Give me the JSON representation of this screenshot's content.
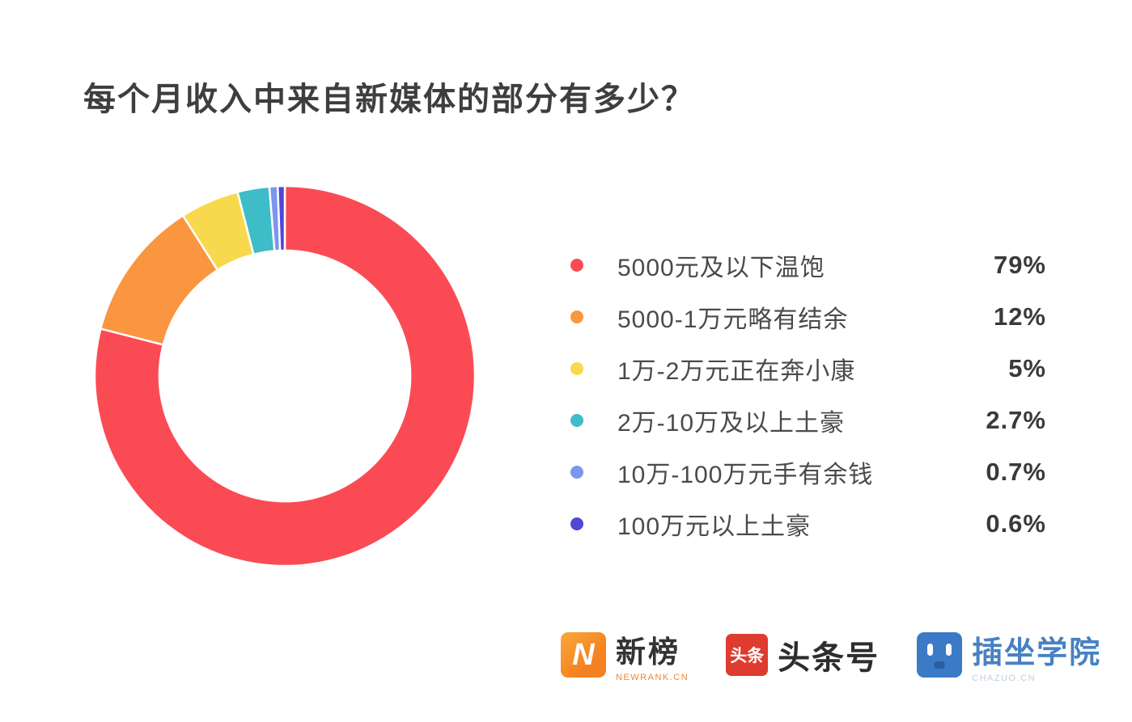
{
  "title": {
    "text": "每个月收入中来自新媒体的部分有多少？"
  },
  "chart_data": {
    "type": "pie",
    "subtype": "donut",
    "title": "每个月收入中来自新媒体的部分有多少？",
    "labels": [
      "5000元及以下温饱",
      "5000-1万元略有结余",
      "1万-2万元正在奔小康",
      "2万-10万及以上土豪",
      "10万-100万元手有余钱",
      "100万元以上土豪"
    ],
    "values": [
      79,
      12,
      5,
      2.7,
      0.7,
      0.6
    ],
    "value_labels": [
      "79%",
      "12%",
      "5%",
      "2.7%",
      "0.7%",
      "0.6%"
    ],
    "colors": [
      "#fa4b55",
      "#f9963f",
      "#f8d94e",
      "#3ebcc7",
      "#7b96ee",
      "#5246d7"
    ],
    "start_angle_deg": 0,
    "direction": "clockwise",
    "inner_radius_ratio": 0.66,
    "slice_gap_color": "#ffffff",
    "legend_position": "right",
    "grid": false
  },
  "footer": {
    "logos": [
      {
        "name": "newrank",
        "icon_text": "N",
        "title": "新榜",
        "subtitle": "NEWRANK.CN"
      },
      {
        "name": "toutiao",
        "icon_text": "头条",
        "title": "头条号"
      },
      {
        "name": "chazuo",
        "title": "插坐学院",
        "subtitle": "CHAZUO.CN"
      }
    ]
  }
}
